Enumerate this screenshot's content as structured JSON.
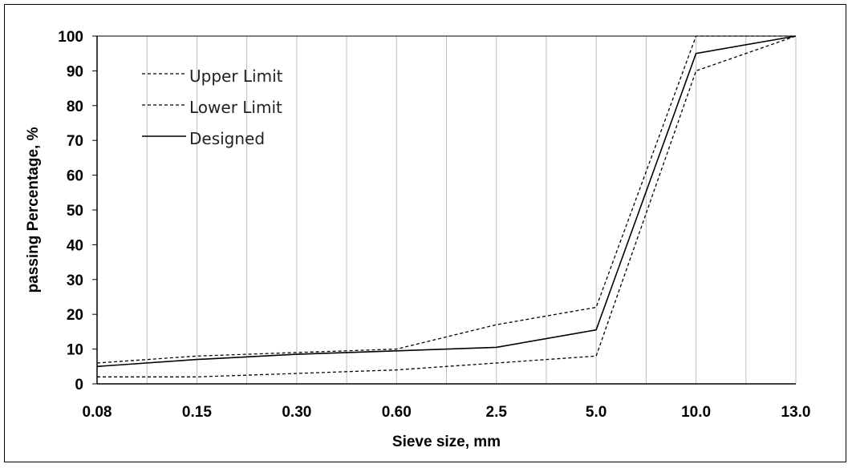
{
  "chart_data": {
    "type": "line",
    "categories": [
      "0.08",
      "0.15",
      "0.30",
      "0.60",
      "2.5",
      "5.0",
      "10.0",
      "13.0"
    ],
    "xlabel": "Sieve size, mm",
    "ylabel": "passing Percentage, %",
    "ylim": [
      0,
      100
    ],
    "yticks": [
      "0",
      "10",
      "20",
      "30",
      "40",
      "50",
      "60",
      "70",
      "80",
      "90",
      "100"
    ],
    "grid": "vertical",
    "legend_position": "top-left",
    "series": [
      {
        "name": "Upper Limit",
        "style": "dashed",
        "color": "#000000",
        "values": [
          6,
          8,
          9,
          10,
          17,
          22,
          100,
          100
        ]
      },
      {
        "name": "Lower Limit",
        "style": "dashed",
        "color": "#000000",
        "values": [
          2,
          2,
          3,
          4,
          6,
          8,
          90,
          100
        ]
      },
      {
        "name": "Designed",
        "style": "solid",
        "color": "#000000",
        "values": [
          5,
          7,
          8.5,
          9.5,
          10.5,
          15.5,
          95,
          100
        ]
      }
    ]
  }
}
